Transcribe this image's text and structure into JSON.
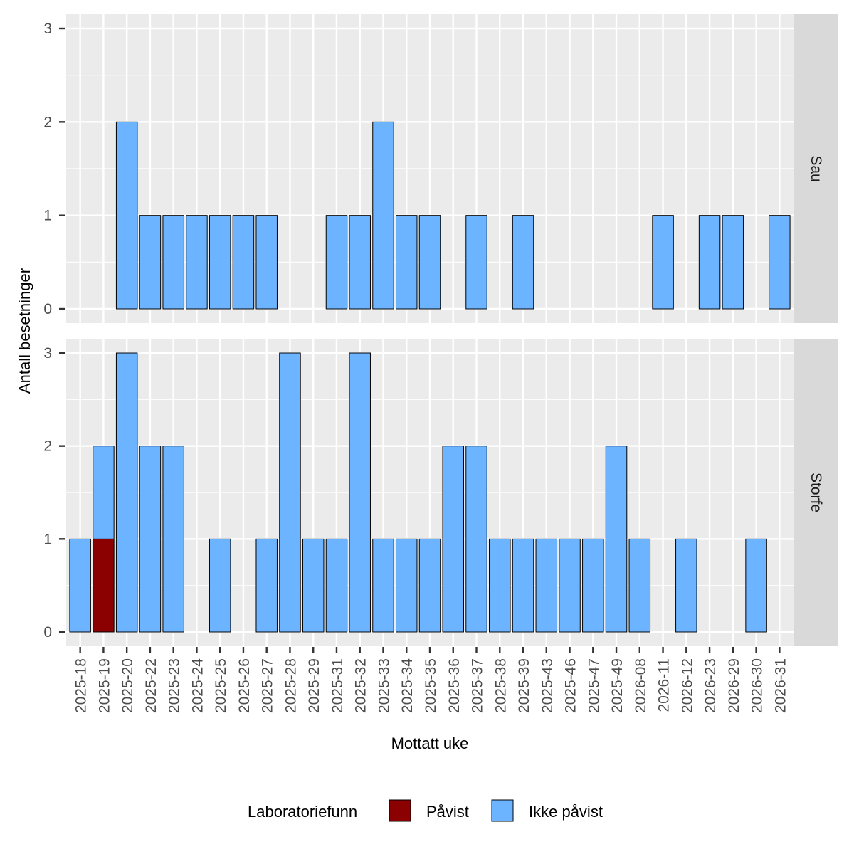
{
  "chart_data": {
    "type": "bar",
    "stacked": true,
    "xlabel": "Mottatt uke",
    "ylabel": "Antall besetninger",
    "ylim": [
      0,
      3
    ],
    "yticks": [
      0,
      1,
      2,
      3
    ],
    "grid": true,
    "legend_position": "bottom",
    "categories": [
      "2025-18",
      "2025-19",
      "2025-20",
      "2025-22",
      "2025-23",
      "2025-24",
      "2025-25",
      "2025-26",
      "2025-27",
      "2025-28",
      "2025-29",
      "2025-31",
      "2025-32",
      "2025-33",
      "2025-34",
      "2025-35",
      "2025-36",
      "2025-37",
      "2025-38",
      "2025-39",
      "2025-43",
      "2025-46",
      "2025-47",
      "2025-49",
      "2026-08",
      "2026-11",
      "2026-12",
      "2026-23",
      "2026-29",
      "2026-30",
      "2026-31"
    ],
    "legend": {
      "title": "Laboratoriefunn",
      "items": [
        {
          "name": "Påvist",
          "color": "#8B0000"
        },
        {
          "name": "Ikke påvist",
          "color": "#6CB4FF"
        }
      ]
    },
    "panels": [
      {
        "label": "Sau",
        "series": [
          {
            "name": "Påvist",
            "values": [
              0,
              0,
              0,
              0,
              0,
              0,
              0,
              0,
              0,
              0,
              0,
              0,
              0,
              0,
              0,
              0,
              0,
              0,
              0,
              0,
              0,
              0,
              0,
              0,
              0,
              0,
              0,
              0,
              0,
              0,
              0
            ]
          },
          {
            "name": "Ikke påvist",
            "values": [
              0,
              0,
              2,
              1,
              1,
              1,
              1,
              1,
              1,
              0,
              0,
              1,
              1,
              2,
              1,
              1,
              0,
              1,
              0,
              1,
              0,
              0,
              0,
              0,
              0,
              1,
              0,
              1,
              1,
              0,
              1
            ]
          }
        ]
      },
      {
        "label": "Storfe",
        "series": [
          {
            "name": "Påvist",
            "values": [
              0,
              1,
              0,
              0,
              0,
              0,
              0,
              0,
              0,
              0,
              0,
              0,
              0,
              0,
              0,
              0,
              0,
              0,
              0,
              0,
              0,
              0,
              0,
              0,
              0,
              0,
              0,
              0,
              0,
              0,
              0
            ]
          },
          {
            "name": "Ikke påvist",
            "values": [
              1,
              1,
              3,
              2,
              2,
              0,
              1,
              0,
              1,
              3,
              1,
              1,
              3,
              1,
              1,
              1,
              2,
              2,
              1,
              1,
              1,
              1,
              1,
              2,
              1,
              0,
              1,
              0,
              0,
              1,
              0
            ]
          }
        ]
      }
    ]
  }
}
